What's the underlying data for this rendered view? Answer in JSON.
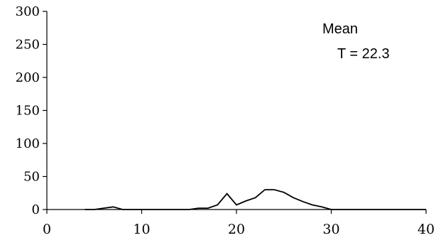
{
  "chart_data": {
    "type": "line",
    "title": "",
    "xlabel": "",
    "ylabel": "",
    "xlim": [
      0,
      40
    ],
    "ylim": [
      0,
      300
    ],
    "x_ticks": [
      0,
      10,
      20,
      30,
      40
    ],
    "y_ticks": [
      0,
      50,
      100,
      150,
      200,
      250,
      300
    ],
    "grid": false,
    "legend": "none",
    "annotations": [
      "Mean",
      "T = 22.3"
    ],
    "series": [
      {
        "x": [
          4,
          5,
          6,
          7,
          8,
          9,
          10,
          11,
          12,
          13,
          14,
          15,
          16,
          17,
          18,
          19,
          20,
          21,
          22,
          23,
          24,
          25,
          26,
          27,
          28,
          29,
          30,
          31,
          32,
          33,
          34,
          35,
          36,
          37,
          38,
          39,
          40
        ],
        "y": [
          0,
          0,
          2,
          4,
          0,
          0,
          0,
          0,
          0,
          0,
          0,
          0,
          2,
          2,
          7,
          24,
          7,
          13,
          18,
          30,
          30,
          26,
          18,
          12,
          7,
          4,
          0,
          0,
          0,
          0,
          0,
          0,
          0,
          0,
          0,
          0,
          0
        ],
        "color": "#000000"
      }
    ]
  }
}
